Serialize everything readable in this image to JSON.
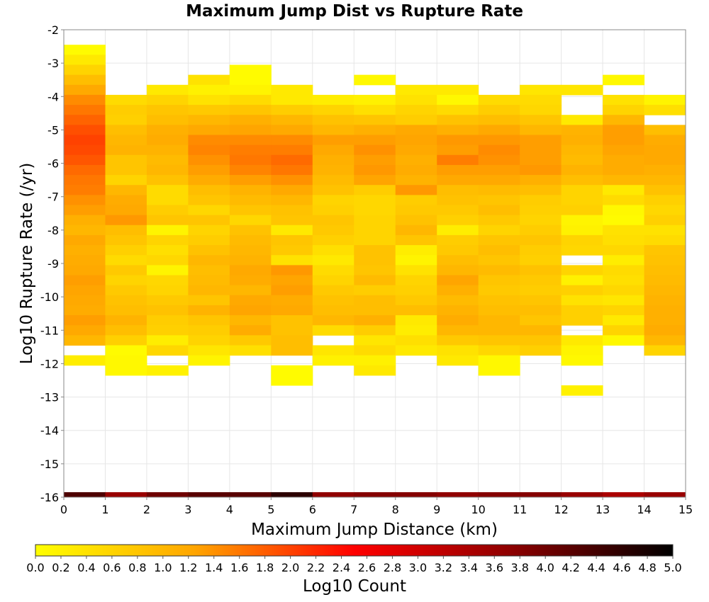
{
  "chart_data": {
    "type": "heatmap",
    "title": "Maximum Jump Dist vs Rupture Rate",
    "xlabel": "Maximum Jump Distance (km)",
    "ylabel": "Log10 Rupture Rate (/yr)",
    "xlim": [
      0,
      15
    ],
    "ylim": [
      -16,
      -2
    ],
    "x_ticks": [
      "0",
      "1",
      "2",
      "3",
      "4",
      "5",
      "6",
      "7",
      "8",
      "9",
      "10",
      "11",
      "12",
      "13",
      "14",
      "15"
    ],
    "y_ticks": [
      "-2",
      "-3",
      "-4",
      "-5",
      "-6",
      "-7",
      "-8",
      "-9",
      "-10",
      "-11",
      "-12",
      "-13",
      "-14",
      "-15",
      "-16"
    ],
    "x_bin_width": 1,
    "y_bin_height": 0.3,
    "colorbar": {
      "label": "Log10 Count",
      "range": [
        0,
        5
      ],
      "ticks": [
        "0.0",
        "0.2",
        "0.4",
        "0.6",
        "0.8",
        "1.0",
        "1.2",
        "1.4",
        "1.6",
        "1.8",
        "2.0",
        "2.2",
        "2.4",
        "2.6",
        "2.8",
        "3.0",
        "3.2",
        "3.4",
        "3.6",
        "3.8",
        "4.0",
        "4.2",
        "4.4",
        "4.6",
        "4.8",
        "5.0"
      ],
      "colors": [
        "#ffff00",
        "#ffa500",
        "#ff0000",
        "#8b0000",
        "#000000"
      ]
    },
    "rows": [
      {
        "y": -2.6,
        "values": [
          0.05,
          null,
          null,
          null,
          null,
          null,
          null,
          null,
          null,
          null,
          null,
          null,
          null,
          null,
          null
        ]
      },
      {
        "y": -2.9,
        "values": [
          0.3,
          null,
          null,
          null,
          null,
          null,
          null,
          null,
          null,
          null,
          null,
          null,
          null,
          null,
          null
        ]
      },
      {
        "y": -3.2,
        "values": [
          0.6,
          null,
          null,
          null,
          0.05,
          null,
          null,
          null,
          null,
          null,
          null,
          null,
          null,
          null,
          null
        ]
      },
      {
        "y": -3.5,
        "values": [
          0.9,
          null,
          null,
          0.4,
          0.05,
          null,
          null,
          0.1,
          null,
          null,
          null,
          null,
          null,
          0.1,
          null
        ]
      },
      {
        "y": -3.8,
        "values": [
          1.2,
          null,
          0.3,
          0.2,
          0.15,
          0.3,
          null,
          null,
          0.3,
          0.3,
          null,
          0.35,
          0.35,
          null,
          null
        ]
      },
      {
        "y": -4.1,
        "values": [
          1.45,
          0.5,
          0.6,
          0.4,
          0.5,
          0.3,
          0.25,
          0.2,
          0.4,
          0.1,
          0.5,
          0.5,
          null,
          0.4,
          0.15
        ]
      },
      {
        "y": -4.4,
        "values": [
          1.6,
          0.7,
          0.8,
          0.75,
          0.8,
          0.7,
          0.6,
          0.45,
          0.6,
          0.5,
          0.7,
          0.55,
          null,
          0.6,
          0.45
        ]
      },
      {
        "y": -4.7,
        "values": [
          1.75,
          0.65,
          0.9,
          1.0,
          1.1,
          1.0,
          0.85,
          0.8,
          0.7,
          0.85,
          0.9,
          0.8,
          0.3,
          1.0,
          null
        ]
      },
      {
        "y": -5.0,
        "values": [
          1.9,
          0.9,
          1.1,
          1.2,
          1.25,
          1.2,
          1.0,
          1.1,
          1.2,
          1.1,
          1.2,
          1.0,
          1.05,
          1.3,
          0.9
        ]
      },
      {
        "y": -5.3,
        "values": [
          2.0,
          1.0,
          1.15,
          1.45,
          1.45,
          1.45,
          1.3,
          1.3,
          1.25,
          1.35,
          1.35,
          1.3,
          1.1,
          1.3,
          1.15
        ]
      },
      {
        "y": -5.6,
        "values": [
          1.95,
          1.05,
          1.05,
          1.5,
          1.55,
          1.55,
          1.2,
          1.4,
          1.2,
          1.3,
          1.45,
          1.3,
          1.0,
          1.25,
          1.2
        ]
      },
      {
        "y": -5.9,
        "values": [
          1.85,
          0.8,
          0.95,
          1.4,
          1.6,
          1.7,
          1.1,
          1.3,
          1.1,
          1.55,
          1.4,
          1.3,
          0.95,
          1.15,
          1.2
        ]
      },
      {
        "y": -6.2,
        "values": [
          1.7,
          0.8,
          1.0,
          1.3,
          1.5,
          1.6,
          1.05,
          1.35,
          1.15,
          1.3,
          1.3,
          1.35,
          1.05,
          1.15,
          1.1
        ]
      },
      {
        "y": -6.5,
        "values": [
          1.6,
          0.6,
          0.85,
          1.15,
          1.3,
          1.4,
          0.95,
          1.25,
          1.05,
          1.2,
          1.2,
          1.1,
          0.9,
          1.0,
          1.0
        ]
      },
      {
        "y": -6.8,
        "values": [
          1.55,
          1.0,
          0.5,
          0.9,
          1.05,
          1.2,
          0.85,
          0.7,
          1.35,
          0.9,
          0.95,
          0.9,
          0.6,
          0.3,
          0.85
        ]
      },
      {
        "y": -7.1,
        "values": [
          1.4,
          1.15,
          0.5,
          0.8,
          0.95,
          1.0,
          0.6,
          0.55,
          0.7,
          0.85,
          0.8,
          0.7,
          0.6,
          0.5,
          0.65
        ]
      },
      {
        "y": -7.4,
        "values": [
          1.3,
          1.2,
          0.7,
          0.55,
          0.8,
          0.85,
          0.65,
          0.55,
          0.75,
          0.75,
          0.9,
          0.65,
          0.65,
          0.1,
          0.55
        ]
      },
      {
        "y": -7.7,
        "values": [
          1.1,
          1.35,
          0.8,
          0.8,
          0.55,
          0.8,
          0.8,
          0.6,
          0.85,
          0.65,
          0.75,
          0.6,
          0.15,
          0.05,
          0.65
        ]
      },
      {
        "y": -8.0,
        "values": [
          1.0,
          0.9,
          0.15,
          0.6,
          0.85,
          0.3,
          0.75,
          0.6,
          1.0,
          0.25,
          0.6,
          0.7,
          0.2,
          0.4,
          0.4
        ]
      },
      {
        "y": -8.3,
        "values": [
          1.2,
          0.8,
          0.6,
          0.7,
          0.95,
          0.8,
          0.65,
          0.6,
          0.8,
          0.7,
          0.8,
          0.8,
          0.6,
          0.45,
          0.5
        ]
      },
      {
        "y": -8.6,
        "values": [
          1.1,
          0.65,
          0.45,
          0.85,
          1.0,
          0.75,
          0.45,
          0.85,
          0.25,
          0.75,
          0.9,
          0.7,
          0.55,
          0.55,
          0.8
        ]
      },
      {
        "y": -8.9,
        "values": [
          1.15,
          0.5,
          0.55,
          1.0,
          1.05,
          0.4,
          0.3,
          0.85,
          0.15,
          0.9,
          0.8,
          0.65,
          null,
          0.25,
          0.85
        ]
      },
      {
        "y": -9.2,
        "values": [
          1.2,
          0.75,
          0.15,
          0.9,
          1.2,
          1.35,
          0.5,
          0.8,
          0.4,
          1.0,
          0.95,
          0.85,
          0.6,
          0.5,
          0.9
        ]
      },
      {
        "y": -9.5,
        "values": [
          1.3,
          0.6,
          0.55,
          0.95,
          1.15,
          1.25,
          0.6,
          0.95,
          0.6,
          1.25,
          0.8,
          0.75,
          0.2,
          0.45,
          0.95
        ]
      },
      {
        "y": -9.8,
        "values": [
          1.25,
          0.75,
          0.6,
          1.0,
          1.0,
          1.3,
          0.75,
          0.7,
          0.65,
          1.1,
          0.75,
          0.7,
          0.65,
          0.55,
          1.0
        ]
      },
      {
        "y": -10.1,
        "values": [
          1.2,
          0.85,
          0.75,
          0.8,
          1.2,
          1.15,
          0.85,
          0.9,
          0.75,
          0.95,
          0.85,
          0.8,
          0.4,
          0.35,
          1.05
        ]
      },
      {
        "y": -10.4,
        "values": [
          1.15,
          0.9,
          0.85,
          1.05,
          1.25,
          1.2,
          0.9,
          0.9,
          0.9,
          1.05,
          0.9,
          0.9,
          0.65,
          0.6,
          1.1
        ]
      },
      {
        "y": -10.7,
        "values": [
          1.3,
          1.05,
          0.7,
          0.8,
          1.0,
          0.85,
          1.0,
          1.1,
          0.3,
          1.15,
          1.0,
          0.8,
          0.65,
          0.3,
          1.1
        ]
      },
      {
        "y": -11.0,
        "values": [
          1.2,
          0.9,
          0.65,
          0.7,
          1.15,
          0.85,
          0.5,
          0.7,
          0.25,
          1.0,
          1.0,
          1.0,
          null,
          0.6,
          1.15
        ]
      },
      {
        "y": -11.3,
        "values": [
          1.0,
          0.65,
          0.25,
          0.6,
          0.75,
          0.9,
          null,
          0.35,
          0.45,
          0.75,
          0.8,
          0.8,
          0.3,
          0.1,
          1.0
        ]
      },
      {
        "y": -11.6,
        "values": [
          null,
          0.05,
          0.55,
          0.35,
          0.45,
          0.9,
          0.35,
          0.5,
          0.3,
          0.4,
          0.55,
          0.65,
          0.15,
          null,
          0.6
        ]
      },
      {
        "y": -11.9,
        "values": [
          0.25,
          0.1,
          null,
          0.15,
          null,
          null,
          0.2,
          0.2,
          null,
          0.3,
          0.1,
          null,
          0.1,
          null,
          null
        ]
      },
      {
        "y": -12.2,
        "values": [
          null,
          0.1,
          0.2,
          null,
          null,
          0.05,
          null,
          0.3,
          null,
          null,
          0.1,
          null,
          null,
          null,
          null
        ]
      },
      {
        "y": -12.5,
        "values": [
          null,
          null,
          null,
          null,
          null,
          0.05,
          null,
          null,
          null,
          null,
          null,
          null,
          null,
          null,
          null
        ]
      },
      {
        "y": -12.8,
        "values": [
          null,
          null,
          null,
          null,
          null,
          null,
          null,
          null,
          null,
          null,
          null,
          null,
          0.2,
          null,
          null
        ]
      },
      {
        "y": -16.0,
        "values": [
          4.3,
          3.6,
          4.0,
          4.2,
          4.2,
          4.6,
          3.7,
          3.8,
          3.8,
          3.7,
          3.8,
          3.8,
          3.6,
          3.4,
          3.6
        ]
      }
    ]
  }
}
